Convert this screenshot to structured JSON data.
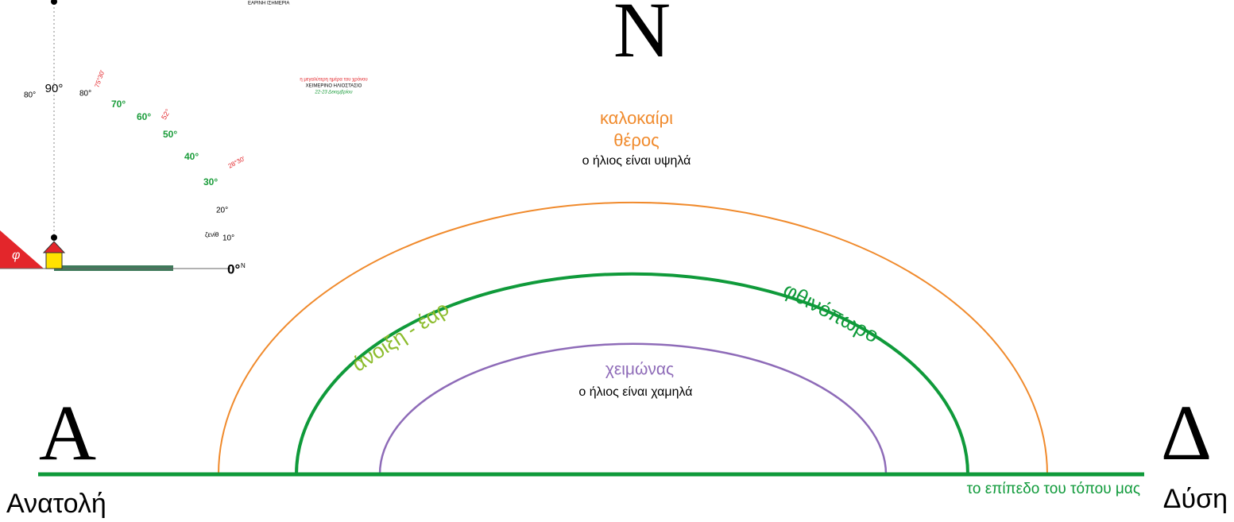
{
  "compass": {
    "north": "Ν",
    "east_letter": "Α",
    "east": "Ανατολή",
    "west_letter": "Δ",
    "west": "Δύση"
  },
  "horizon": "το επίπεδο του τόπου μας",
  "summer": {
    "title": "καλοκαίρι",
    "subtitle": "θέρος",
    "note": "ο ήλιος είναι υψηλά"
  },
  "spring": "άνοιξη - έαρ",
  "autumn": "φθινόπωρο",
  "winter": {
    "title": "χειμώνας",
    "note": "ο ήλιος είναι χαμηλά"
  },
  "inset": {
    "angles": [
      "90°",
      "80°",
      "80°",
      "70°",
      "60°",
      "50°",
      "40°",
      "30°",
      "20°",
      "10°",
      "0°"
    ],
    "summer_angle": "75°30'",
    "equinox_angle": "52°",
    "winter_angle": "28°30'",
    "latitude": "φ",
    "zenith": "ζενίθ",
    "north": "N",
    "equinox": "ΕΑΡΙΝΗ ΙΣΗΜΕΡΙΑ",
    "longest_day": "η μεγαλύτερη ημέρα του χρόνου",
    "solstice": "ΧΕΙΜΕΡΙΝΟ ΗΛΙΟΣΤΑΣΙΟ",
    "solstice_date": "22-23 Δεκεμβρίου"
  }
}
